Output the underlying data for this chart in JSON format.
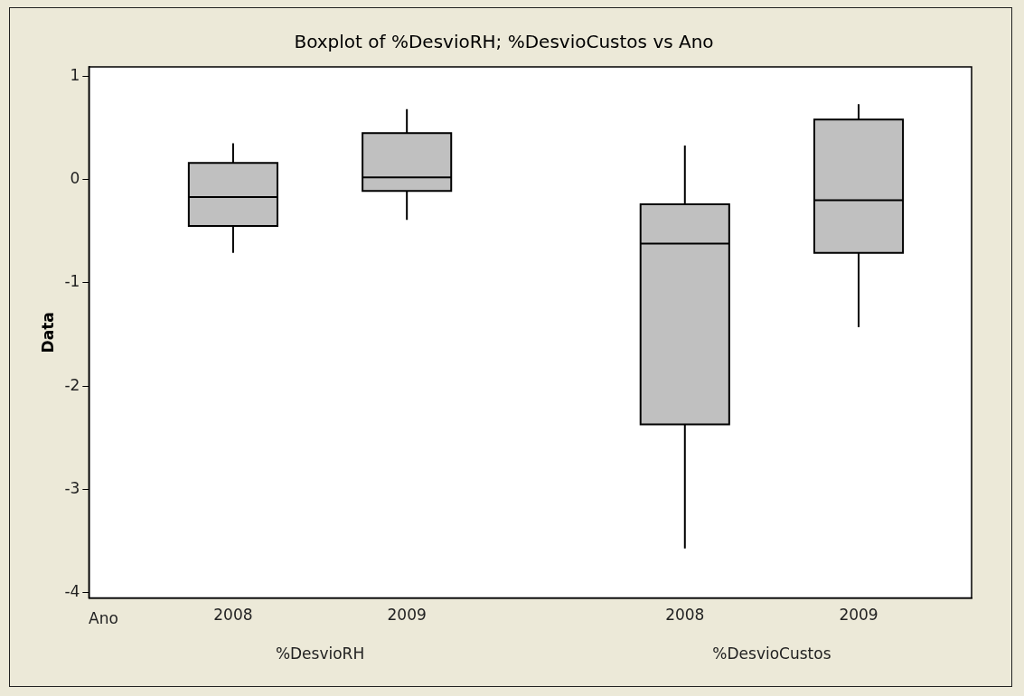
{
  "chart_data": {
    "type": "box",
    "title": "Boxplot of %DesvioRH; %DesvioCustos vs Ano",
    "xlabel": "Ano",
    "ylabel": "Data",
    "categories": [
      "2008",
      "2009",
      "2008",
      "2009"
    ],
    "boxes": [
      {
        "low": -0.71,
        "q1": -0.45,
        "median": -0.17,
        "q3": 0.16,
        "high": 0.35
      },
      {
        "low": -0.39,
        "q1": -0.11,
        "median": 0.02,
        "q3": 0.45,
        "high": 0.68
      },
      {
        "low": -3.57,
        "q1": -2.37,
        "median": -0.62,
        "q3": -0.24,
        "high": 0.33
      },
      {
        "low": -1.43,
        "q1": -0.71,
        "median": -0.2,
        "q3": 0.58,
        "high": 0.73
      }
    ],
    "color": "#c0c0c0",
    "ylim": [
      -4.05,
      1.09
    ],
    "yticks": [
      -4,
      -3,
      -2,
      -1,
      0,
      1
    ],
    "grid": false,
    "legend": false,
    "annotations": [
      "%DesvioRH",
      "%DesvioCustos"
    ]
  }
}
